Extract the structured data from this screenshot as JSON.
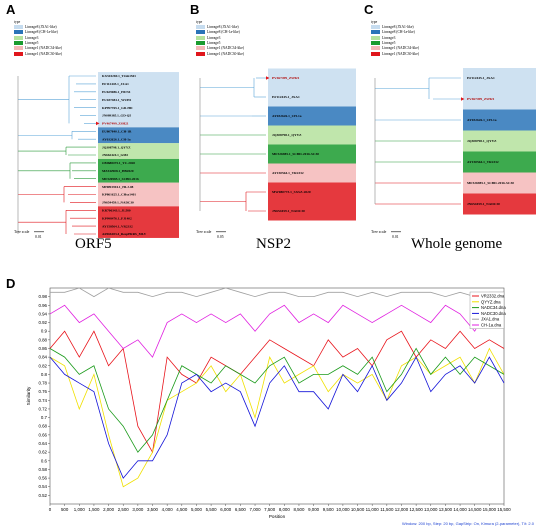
{
  "panels": [
    {
      "letter": "A",
      "caption": "ORF5",
      "legend_title": "type"
    },
    {
      "letter": "B",
      "caption": "NSP2",
      "legend_title": "type"
    },
    {
      "letter": "C",
      "caption": "Whole genome",
      "legend_title": "type"
    },
    {
      "letter": "D"
    }
  ],
  "legend_items": [
    {
      "label": "Lineage8 (JXA1-like)",
      "color": "#c6dcef"
    },
    {
      "label": "Lineage8 (CH-1a-like)",
      "color": "#2a74b8"
    },
    {
      "label": "Lineage3",
      "color": "#b5e29d"
    },
    {
      "label": "Lineage5",
      "color": "#1b9b2f"
    },
    {
      "label": "Lineage1 (NADC34-like)",
      "color": "#f4b8b8"
    },
    {
      "label": "Lineage1 (NADC30-like)",
      "color": "#e0161c"
    }
  ],
  "tree_scale_label": "Tree scale",
  "trees": {
    "orf5": {
      "scale_value": "0.01",
      "taxa": [
        {
          "label": "KX510269.1_TJnh1501",
          "group": 0
        },
        {
          "label": "EF112445.1_JXA1",
          "group": 0
        },
        {
          "label": "EU629086.1_HUN4",
          "group": 0
        },
        {
          "label": "EU187484.1_WUH1",
          "group": 0
        },
        {
          "label": "KP997765.1_GD-HD",
          "group": 0
        },
        {
          "label": "JN089385.1_GD-Q5",
          "group": 0
        },
        {
          "label": "PV467499_ZSH21",
          "group": 0,
          "highlight": true
        },
        {
          "label": "EU807840.1_CH-1R",
          "group": 1
        },
        {
          "label": "AY032626.1_CH-1a",
          "group": 1
        },
        {
          "label": "JQ308798.1_QYYZ",
          "group": 2
        },
        {
          "label": "JN662424.1_GM2",
          "group": 2
        },
        {
          "label": "OM688475.1_YC-2020",
          "group": 3
        },
        {
          "label": "MZ342908.1_HB2020",
          "group": 3
        },
        {
          "label": "MF326985.1_SCBD-2016",
          "group": 3
        },
        {
          "label": "MH093394.1_HLJ-08",
          "group": 4
        },
        {
          "label": "KP861625.1_CHsx1401",
          "group": 4
        },
        {
          "label": "JN654459.1_NADC30",
          "group": 4
        },
        {
          "label": "KR706343.1_JL580",
          "group": 5
        },
        {
          "label": "KP998476.1_FJ1402",
          "group": 5
        },
        {
          "label": "AY150564.1_VR2332",
          "group": 5
        },
        {
          "label": "AF066183.4_RespPRRS_MLV",
          "group": 5
        }
      ]
    },
    "nsp2": {
      "scale_value": "0.05",
      "taxa": [
        {
          "label": "PV467499_ZSH21",
          "group": 0,
          "highlight": true
        },
        {
          "label": "EF112445.1_JXA1",
          "group": 0
        },
        {
          "label": "AY032626.1_CH-1a",
          "group": 1
        },
        {
          "label": "JQ308798.1_QYYZ",
          "group": 2
        },
        {
          "label": "MF326985.1_SCBD-2016-SC30",
          "group": 3
        },
        {
          "label": "AY150564.1_VR2332",
          "group": 4
        },
        {
          "label": "MW080773.1_SXSZ-2020",
          "group": 5
        },
        {
          "label": "JN654459.1_NADC30",
          "group": 5
        }
      ]
    },
    "whole": {
      "scale_value": "0.01",
      "taxa": [
        {
          "label": "EF112445.1_JXA1",
          "group": 0
        },
        {
          "label": "PV467499_ZSH21",
          "group": 0,
          "highlight": true
        },
        {
          "label": "AY032626.1_CH-1a",
          "group": 1
        },
        {
          "label": "JQ308798.1_QYYZ",
          "group": 2
        },
        {
          "label": "AY150564.1_VR2332",
          "group": 3
        },
        {
          "label": "MF326985.1_SCBD-2016-SC30",
          "group": 4
        },
        {
          "label": "JN654459.1_NADC30",
          "group": 5
        }
      ]
    }
  },
  "chart_data": {
    "type": "line",
    "xlabel": "Position",
    "ylabel": "Similarity",
    "xlim": [
      0,
      15500
    ],
    "ylim": [
      0.5,
      1.0
    ],
    "x_ticks": [
      0,
      500,
      1000,
      1500,
      2000,
      2500,
      3000,
      3500,
      4000,
      4500,
      5000,
      5500,
      6000,
      6500,
      7000,
      7500,
      8000,
      8500,
      9000,
      9500,
      10000,
      10500,
      11000,
      11500,
      12000,
      12500,
      13000,
      13500,
      14000,
      14500,
      15000,
      15500
    ],
    "x_tick_labels": [
      "0",
      "500",
      "1,000",
      "1,500",
      "2,000",
      "2,500",
      "3,000",
      "3,500",
      "4,000",
      "4,500",
      "5,000",
      "5,500",
      "6,000",
      "6,500",
      "7,000",
      "7,500",
      "8,000",
      "8,500",
      "9,000",
      "9,500",
      "10,000",
      "10,500",
      "11,000",
      "11,500",
      "12,000",
      "12,500",
      "13,000",
      "13,500",
      "14,000",
      "14,500",
      "15,000",
      "15,500"
    ],
    "y_ticks": [
      0.52,
      0.54,
      0.56,
      0.58,
      0.6,
      0.62,
      0.64,
      0.66,
      0.68,
      0.7,
      0.72,
      0.74,
      0.76,
      0.78,
      0.8,
      0.82,
      0.84,
      0.86,
      0.88,
      0.9,
      0.92,
      0.94,
      0.96,
      0.98
    ],
    "y_tick_labels": [
      "0.52",
      "0.54",
      "0.56",
      "0.58",
      "0.6",
      "0.62",
      "0.64",
      "0.66",
      "0.68",
      "0.7",
      "0.72",
      "0.74",
      "0.76",
      "0.78",
      "0.8",
      "0.82",
      "0.84",
      "0.86",
      "0.88",
      "0.9",
      "0.92",
      "0.94",
      "0.96",
      "0.98"
    ],
    "footnote": "Window: 200 bp, Step: 20 bp, GapStrip: On, Kimura (2-parameter), T/t: 2.0",
    "x": [
      0,
      500,
      1000,
      1500,
      2000,
      2500,
      3000,
      3500,
      4000,
      4500,
      5000,
      5500,
      6000,
      6500,
      7000,
      7500,
      8000,
      8500,
      9000,
      9500,
      10000,
      10500,
      11000,
      11500,
      12000,
      12500,
      13000,
      13500,
      14000,
      14500,
      15000,
      15500
    ],
    "series": [
      {
        "name": "VR2332.dna",
        "color": "#e8141b",
        "values": [
          0.86,
          0.9,
          0.84,
          0.9,
          0.82,
          0.86,
          0.68,
          0.62,
          0.84,
          0.8,
          0.78,
          0.84,
          0.82,
          0.8,
          0.84,
          0.88,
          0.86,
          0.84,
          0.82,
          0.88,
          0.84,
          0.86,
          0.82,
          0.88,
          0.9,
          0.84,
          0.88,
          0.86,
          0.9,
          0.86,
          0.88,
          0.86
        ]
      },
      {
        "name": "QYYZ.dna",
        "color": "#f0e000",
        "values": [
          0.84,
          0.82,
          0.72,
          0.8,
          0.66,
          0.54,
          0.56,
          0.62,
          0.74,
          0.76,
          0.78,
          0.82,
          0.76,
          0.8,
          0.7,
          0.84,
          0.78,
          0.8,
          0.82,
          0.76,
          0.8,
          0.78,
          0.8,
          0.74,
          0.82,
          0.84,
          0.8,
          0.82,
          0.84,
          0.78,
          0.86,
          0.8
        ]
      },
      {
        "name": "NADC34.dna",
        "color": "#1a9a1a",
        "values": [
          0.86,
          0.84,
          0.8,
          0.82,
          0.72,
          0.68,
          0.62,
          0.66,
          0.74,
          0.82,
          0.8,
          0.78,
          0.82,
          0.8,
          0.78,
          0.82,
          0.84,
          0.78,
          0.8,
          0.8,
          0.82,
          0.8,
          0.84,
          0.76,
          0.8,
          0.86,
          0.8,
          0.84,
          0.8,
          0.84,
          0.82,
          0.8
        ]
      },
      {
        "name": "NADC30.dna",
        "color": "#1414d8",
        "values": [
          0.84,
          0.8,
          0.78,
          0.76,
          0.64,
          0.56,
          0.6,
          0.6,
          0.66,
          0.78,
          0.8,
          0.76,
          0.78,
          0.76,
          0.68,
          0.78,
          0.82,
          0.76,
          0.76,
          0.72,
          0.8,
          0.76,
          0.82,
          0.74,
          0.78,
          0.84,
          0.76,
          0.8,
          0.82,
          0.78,
          0.84,
          0.78
        ]
      },
      {
        "name": "JXA1.dna",
        "color": "#a0a0a0",
        "values": [
          0.99,
          0.99,
          1.0,
          0.98,
          1.0,
          0.99,
          0.99,
          0.98,
          0.99,
          0.99,
          0.98,
          0.99,
          1.0,
          0.99,
          0.98,
          0.99,
          0.99,
          0.98,
          0.98,
          0.99,
          0.99,
          0.98,
          0.99,
          0.98,
          0.99,
          0.99,
          0.99,
          0.98,
          0.99,
          0.98,
          0.99,
          0.99
        ]
      },
      {
        "name": "CH-1a.dna",
        "color": "#e020e0",
        "values": [
          0.94,
          0.96,
          0.92,
          0.94,
          0.9,
          0.86,
          0.88,
          0.84,
          0.92,
          0.94,
          0.92,
          0.94,
          0.92,
          0.94,
          0.9,
          0.94,
          0.96,
          0.92,
          0.94,
          0.92,
          0.96,
          0.94,
          0.92,
          0.94,
          0.96,
          0.94,
          0.92,
          0.96,
          0.94,
          0.9,
          0.96,
          0.94
        ]
      }
    ]
  }
}
